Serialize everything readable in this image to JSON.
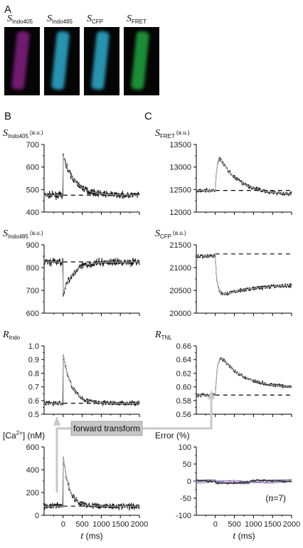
{
  "panel_letters": {
    "a": "A",
    "b": "B",
    "c": "C"
  },
  "images": [
    {
      "label_main": "S",
      "label_sub": "Indo405",
      "color": "#7a1a7a"
    },
    {
      "label_main": "S",
      "label_sub": "Indo485",
      "color": "#2aa0c0"
    },
    {
      "label_main": "S",
      "label_sub": "CFP",
      "color": "#2aa0c0"
    },
    {
      "label_main": "S",
      "label_sub": "FRET",
      "color": "#1a9a3a"
    }
  ],
  "transform_label": "forward transform",
  "chart_data": [
    {
      "id": "indo405",
      "type": "line",
      "panel": "B",
      "ylabel_main": "S",
      "ylabel_sub": "Indo405",
      "ylabel_units": "(a.u.)",
      "ylim": [
        400,
        700
      ],
      "yticks": [
        "400",
        "500",
        "600",
        "700"
      ],
      "xlim": [
        -500,
        2000
      ],
      "show_xaxis": false,
      "baseline": 475,
      "trace": {
        "start": 0,
        "rest": 475,
        "peak": 650,
        "tau": 300,
        "noise": 14
      }
    },
    {
      "id": "indo485",
      "type": "line",
      "panel": "B",
      "ylabel_main": "S",
      "ylabel_sub": "Indo485",
      "ylabel_units": "(a.u.)",
      "ylim": [
        600,
        900
      ],
      "yticks": [
        "600",
        "700",
        "800",
        "900"
      ],
      "xlim": [
        -500,
        2000
      ],
      "show_xaxis": false,
      "baseline": 825,
      "trace": {
        "start": 0,
        "rest": 825,
        "peak": 685,
        "tau": 260,
        "noise": 16
      }
    },
    {
      "id": "r_indo",
      "type": "line",
      "panel": "B",
      "ylabel_main": "R",
      "ylabel_sub": "Indo",
      "ylabel_units": "",
      "ylim": [
        0.5,
        1.0
      ],
      "yticks": [
        "0.5",
        "0.6",
        "0.7",
        "0.8",
        "0.9",
        "1.0"
      ],
      "xlim": [
        -500,
        2000
      ],
      "show_xaxis": false,
      "baseline": 0.58,
      "trace": {
        "start": 0,
        "rest": 0.58,
        "peak": 0.94,
        "tau": 220,
        "noise": 0.018
      }
    },
    {
      "id": "ca",
      "type": "line",
      "panel": "B",
      "ylabel_main": "[Ca",
      "ylabel_sup": "2+",
      "ylabel_rest": "] (nM)",
      "ylim": [
        0,
        600
      ],
      "yticks": [
        "0",
        "200",
        "400",
        "600"
      ],
      "xlim": [
        -500,
        2000
      ],
      "xticks": [
        "0",
        "500",
        "1000",
        "1500",
        "2000"
      ],
      "show_xaxis": true,
      "xlabel_main": "t",
      "xlabel_rest": " (ms)",
      "baseline": 80,
      "trace": {
        "start": 0,
        "rest": 80,
        "peak": 520,
        "tau": 160,
        "noise": 28
      }
    },
    {
      "id": "fret",
      "type": "line",
      "panel": "C",
      "ylabel_main": "S",
      "ylabel_sub": "FRET",
      "ylabel_units": "(a.u.)",
      "ylim": [
        12000,
        13500
      ],
      "yticks": [
        "12000",
        "12500",
        "13000",
        "13500"
      ],
      "xlim": [
        -500,
        2000
      ],
      "show_xaxis": false,
      "baseline": 12480,
      "trace": {
        "start": 0,
        "rest": 12480,
        "peak": 13220,
        "rise": 110,
        "tau": 520,
        "tail": 12380,
        "noise": 45
      }
    },
    {
      "id": "cfp",
      "type": "line",
      "panel": "C",
      "ylabel_main": "S",
      "ylabel_sub": "CFP",
      "ylabel_units": "(a.u.)",
      "ylim": [
        20000,
        21500
      ],
      "yticks": [
        "20000",
        "20500",
        "21000",
        "21500"
      ],
      "xlim": [
        -500,
        2000
      ],
      "show_xaxis": false,
      "baseline": 21300,
      "trace": {
        "start": 0,
        "rest": 21250,
        "peak": 20400,
        "rise": 180,
        "tau": 900,
        "tail": 20640,
        "noise": 45
      }
    },
    {
      "id": "r_tnl",
      "type": "line",
      "panel": "C",
      "ylabel_main": "R",
      "ylabel_sub": "TNL",
      "ylabel_units": "",
      "ylim": [
        0.56,
        0.66
      ],
      "yticks": [
        "0.56",
        "0.58",
        "0.60",
        "0.62",
        "0.64",
        "0.66"
      ],
      "xlim": [
        -500,
        2000
      ],
      "show_xaxis": false,
      "baseline": 0.588,
      "trace": {
        "start": 0,
        "rest": 0.588,
        "peak": 0.645,
        "rise": 140,
        "tau": 600,
        "tail": 0.598,
        "noise": 0.0025
      }
    },
    {
      "id": "error",
      "type": "line",
      "panel": "C",
      "ylabel_main": "Error (%)",
      "ylim": [
        -100,
        100
      ],
      "yticks": [
        "-100",
        "-50",
        "0",
        "50",
        "100"
      ],
      "xlim": [
        -500,
        2000
      ],
      "xticks": [
        "0",
        "500",
        "1000",
        "1500",
        "2000"
      ],
      "show_xaxis": true,
      "xlabel_main": "t",
      "xlabel_rest": " (ms)",
      "annotation_main": "n",
      "annotation_pre": "(",
      "annotation_rest": "=7)",
      "trace": {
        "type": "error",
        "noise": 4
      }
    }
  ]
}
